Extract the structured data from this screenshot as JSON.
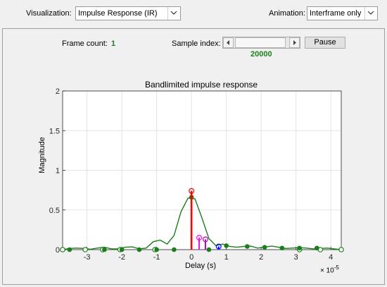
{
  "toolbar": {
    "visualization_label": "Visualization:",
    "visualization_value": "Impulse Response (IR)",
    "animation_label": "Animation:",
    "animation_value": "Interframe only"
  },
  "controls": {
    "frame_count_label": "Frame count:",
    "frame_count_value": "1",
    "sample_index_label": "Sample index:",
    "sample_index_value": "20000",
    "pause_label": "Pause"
  },
  "colors": {
    "value_green": "#1a7f1a",
    "curve_green": "#1a7f1a",
    "path1": "#ff0000",
    "path2": "#ff00ff",
    "path3": "#c000c0",
    "path4": "#0000ff"
  },
  "chart_data": {
    "type": "line",
    "title": "Bandlimited impulse response",
    "xlabel": "Delay (s)",
    "ylabel": "Magnitude",
    "x_exponent_label": "× 10",
    "x_exponent_power": "-5",
    "xlim": [
      -3.7,
      4.3
    ],
    "ylim": [
      0,
      2
    ],
    "xticks": [
      -3,
      -2,
      -1,
      0,
      1,
      2,
      3,
      4
    ],
    "xtick_labels": [
      "-3",
      "-2",
      "-1",
      "0",
      "1",
      "2",
      "3",
      "4"
    ],
    "yticks": [
      0,
      0.5,
      1,
      1.5,
      2
    ],
    "ytick_labels": [
      "0",
      "0.5",
      "1",
      "1.5",
      "2"
    ],
    "grid": true,
    "paths": [
      {
        "delay": 0.0,
        "gain": 0.74,
        "color": "#ff0000"
      },
      {
        "delay": 0.22,
        "gain": 0.15,
        "color": "#ff00ff"
      },
      {
        "delay": 0.4,
        "gain": 0.13,
        "color": "#c000c0"
      },
      {
        "delay": 0.78,
        "gain": 0.04,
        "color": "#0000ff"
      }
    ],
    "curve": {
      "color": "#1a7f1a",
      "x": [
        -3.7,
        -3.5,
        -3.3,
        -3.1,
        -2.9,
        -2.7,
        -2.5,
        -2.3,
        -2.1,
        -1.9,
        -1.7,
        -1.5,
        -1.3,
        -1.1,
        -0.9,
        -0.7,
        -0.5,
        -0.3,
        -0.1,
        0.1,
        0.3,
        0.5,
        0.7,
        0.9,
        1.1,
        1.3,
        1.5,
        1.7,
        1.9,
        2.1,
        2.3,
        2.5,
        2.7,
        2.9,
        3.1,
        3.3,
        3.5,
        3.7,
        3.9,
        4.1,
        4.3
      ],
      "y": [
        0,
        0.015,
        0.02,
        0.015,
        0.005,
        0.02,
        0.03,
        0.01,
        0.01,
        0.03,
        0.035,
        0.01,
        0.02,
        0.1,
        0.12,
        0.07,
        0.18,
        0.48,
        0.65,
        0.64,
        0.4,
        0.14,
        0.05,
        0.07,
        0.04,
        0.03,
        0.04,
        0.045,
        0.02,
        0.03,
        0.045,
        0.03,
        0.015,
        0.02,
        0.025,
        0.02,
        0.01,
        0.015,
        0.02,
        0.01,
        0.0
      ]
    },
    "filled_samples": {
      "x": [
        -3.5,
        -2.5,
        -2.0,
        -1.5,
        -1.0,
        -0.5,
        0.0,
        0.5,
        1.0,
        1.6,
        2.1,
        2.6,
        3.1,
        3.6
      ],
      "y": [
        0,
        0,
        0,
        0,
        0,
        0,
        0.66,
        0,
        0.05,
        0.04,
        0.03,
        0.02,
        0.02,
        0.02
      ]
    },
    "open_samples": {
      "x": [
        -3.7,
        -3.05,
        -2.55,
        -2.05,
        -1.05,
        3.1,
        3.7,
        4.3
      ],
      "y": [
        0,
        0,
        0,
        0,
        0,
        0,
        0,
        0
      ]
    }
  }
}
